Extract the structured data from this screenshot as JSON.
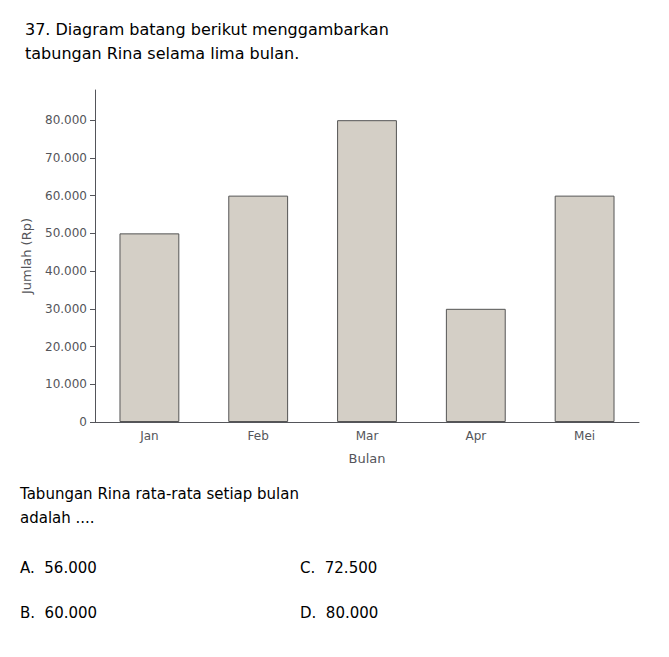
{
  "chart_data": {
    "type": "bar",
    "title": "37. Diagram batang berikut menggambarkan\ntabungan Rina selama lima bulan.",
    "categories": [
      "Jan",
      "Feb",
      "Mar",
      "Apr",
      "Mei"
    ],
    "values": [
      50000,
      60000,
      80000,
      30000,
      60000
    ],
    "color": "#d4cfc6",
    "xlabel": "Bulan",
    "ylabel": "Jumlah (Rp)",
    "ylim": [
      0,
      88000
    ],
    "yticks": [
      0,
      {
        "value": 10000,
        "label": "10.000"
      },
      {
        "value": 20000,
        "label": "20.000"
      },
      {
        "value": 30000,
        "label": "30.000"
      },
      {
        "value": 40000,
        "label": "40.000"
      },
      {
        "value": 50000,
        "label": "50.000"
      },
      {
        "value": 60000,
        "label": "60.000"
      },
      {
        "value": 70000,
        "label": "70.000"
      },
      {
        "value": 80000,
        "label": "80.000"
      }
    ],
    "grid": false,
    "subtitle": "Tabungan Rina rata-rata setiap bulan\nadalah ....",
    "annotations": [
      "A.  56.000",
      "B.  60.000",
      "C.  72.500",
      "D.  80.000"
    ]
  }
}
